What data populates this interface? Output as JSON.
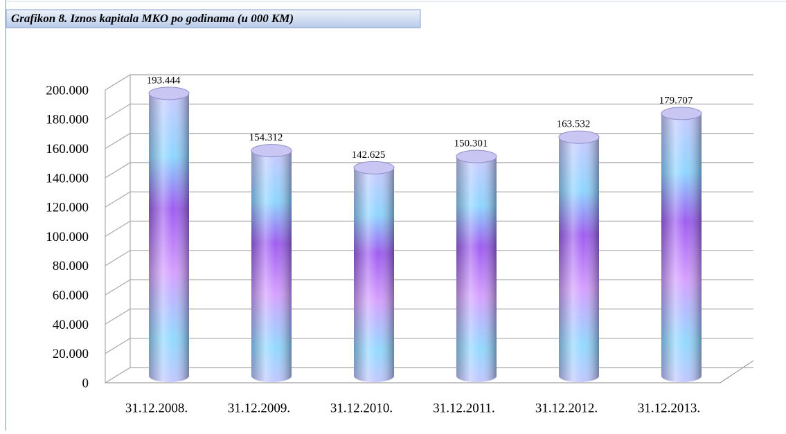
{
  "chart_data": {
    "type": "bar",
    "title": "Grafikon 8. Iznos kapitala MKO po godinama (u 000 KM)",
    "categories": [
      "31.12.2008.",
      "31.12.2009.",
      "31.12.2010.",
      "31.12.2011.",
      "31.12.2012.",
      "31.12.2013."
    ],
    "values": [
      193444,
      154312,
      142625,
      150301,
      163532,
      179707
    ],
    "value_labels": [
      "193.444",
      "154.312",
      "142.625",
      "150.301",
      "163.532",
      "179.707"
    ],
    "ylim": [
      0,
      200000
    ],
    "yticks": [
      0,
      {
        "value": 20000,
        "label": "20.000"
      },
      {
        "value": 40000,
        "label": "40.000"
      },
      {
        "value": 60000,
        "label": "60.000"
      },
      {
        "value": 80000,
        "label": "80.000"
      },
      {
        "value": 100000,
        "label": "100.000"
      },
      {
        "value": 120000,
        "label": "120.000"
      },
      {
        "value": 140000,
        "label": "140.000"
      },
      {
        "value": 160000,
        "label": "160.000"
      },
      {
        "value": 180000,
        "label": "180.000"
      },
      {
        "value": 200000,
        "label": "200.000"
      }
    ],
    "grid": true
  }
}
